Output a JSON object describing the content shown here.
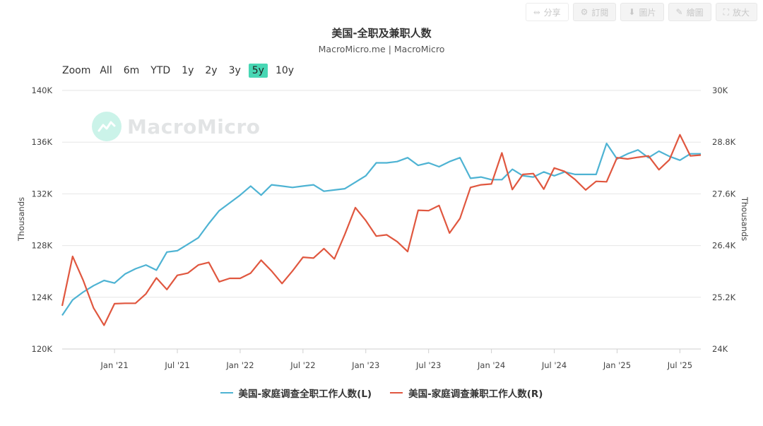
{
  "toolbar": {
    "share": "分享",
    "subscribe": "訂閱",
    "image": "圖片",
    "draw": "繪圖",
    "expand": "放大"
  },
  "zoom": {
    "label": "Zoom",
    "options": [
      "All",
      "6m",
      "YTD",
      "1y",
      "2y",
      "3y",
      "5y",
      "10y"
    ],
    "active": "5y"
  },
  "watermark": "MacroMicro",
  "colors": {
    "left_series": "#4eb3d3",
    "right_series": "#e0573f",
    "accent": "#47d7b4"
  },
  "chart_data": {
    "type": "line",
    "title": "美国-全职及兼职人数",
    "subtitle": "MacroMicro.me | MacroMicro",
    "x_ticks": [
      "Jan '21",
      "Jul '21",
      "Jan '22",
      "Jul '22",
      "Jan '23",
      "Jul '23",
      "Jan '24",
      "Jul '24",
      "Jan '25",
      "Jul '25"
    ],
    "x_range": [
      "2020-08",
      "2025-09"
    ],
    "y_left": {
      "label": "Thousands",
      "ticks": [
        "120K",
        "124K",
        "128K",
        "132K",
        "136K",
        "140K"
      ],
      "range": [
        120000,
        140000
      ]
    },
    "y_right": {
      "label": "Thousands",
      "ticks": [
        "24K",
        "25.2K",
        "26.4K",
        "27.6K",
        "28.8K",
        "30K"
      ],
      "range": [
        24000,
        30000
      ]
    },
    "grid": true,
    "legend_position": "bottom",
    "series": [
      {
        "name": "美国-家庭调查全职工作人数(L)",
        "axis": "left",
        "x": [
          "2020-08",
          "2020-09",
          "2020-10",
          "2020-11",
          "2020-12",
          "2021-01",
          "2021-02",
          "2021-03",
          "2021-04",
          "2021-05",
          "2021-06",
          "2021-07",
          "2021-08",
          "2021-09",
          "2021-10",
          "2021-11",
          "2021-12",
          "2022-01",
          "2022-02",
          "2022-03",
          "2022-04",
          "2022-05",
          "2022-06",
          "2022-07",
          "2022-08",
          "2022-09",
          "2022-10",
          "2022-11",
          "2022-12",
          "2023-01",
          "2023-02",
          "2023-03",
          "2023-04",
          "2023-05",
          "2023-06",
          "2023-07",
          "2023-08",
          "2023-09",
          "2023-10",
          "2023-11",
          "2023-12",
          "2024-01",
          "2024-02",
          "2024-03",
          "2024-04",
          "2024-05",
          "2024-06",
          "2024-07",
          "2024-08",
          "2024-09",
          "2024-10",
          "2024-11",
          "2024-12",
          "2025-01",
          "2025-02",
          "2025-03",
          "2025-04",
          "2025-05",
          "2025-06",
          "2025-07",
          "2025-08",
          "2025-09"
        ],
        "values": [
          122600,
          123800,
          124400,
          124900,
          125300,
          125100,
          125800,
          126200,
          126500,
          126100,
          127500,
          127600,
          128100,
          128600,
          129700,
          130700,
          131300,
          131900,
          132600,
          131900,
          132700,
          132600,
          132500,
          132600,
          132700,
          132200,
          132300,
          132400,
          132900,
          133400,
          134400,
          134400,
          134500,
          134800,
          134200,
          134400,
          134100,
          134500,
          134800,
          133200,
          133300,
          133100,
          133100,
          133900,
          133400,
          133300,
          133700,
          133400,
          133700,
          133500,
          133500,
          133500,
          135900,
          134700,
          135100,
          135400,
          134800,
          135300,
          134900,
          134600,
          135100,
          135100
        ]
      },
      {
        "name": "美国-家庭调查兼职工作人数(R)",
        "axis": "right",
        "x": [
          "2020-08",
          "2020-09",
          "2020-10",
          "2020-11",
          "2020-12",
          "2021-01",
          "2021-02",
          "2021-03",
          "2021-04",
          "2021-05",
          "2021-06",
          "2021-07",
          "2021-08",
          "2021-09",
          "2021-10",
          "2021-11",
          "2021-12",
          "2022-01",
          "2022-02",
          "2022-03",
          "2022-04",
          "2022-05",
          "2022-06",
          "2022-07",
          "2022-08",
          "2022-09",
          "2022-10",
          "2022-11",
          "2022-12",
          "2023-01",
          "2023-02",
          "2023-03",
          "2023-04",
          "2023-05",
          "2023-06",
          "2023-07",
          "2023-08",
          "2023-09",
          "2023-10",
          "2023-11",
          "2023-12",
          "2024-01",
          "2024-02",
          "2024-03",
          "2024-04",
          "2024-05",
          "2024-06",
          "2024-07",
          "2024-08",
          "2024-09",
          "2024-10",
          "2024-11",
          "2024-12",
          "2025-01",
          "2025-02",
          "2025-03",
          "2025-04",
          "2025-05",
          "2025-06",
          "2025-07",
          "2025-08",
          "2025-09"
        ],
        "values": [
          25000,
          26150,
          25600,
          24950,
          24550,
          25050,
          25060,
          25060,
          25280,
          25650,
          25380,
          25710,
          25760,
          25950,
          26010,
          25560,
          25640,
          25640,
          25760,
          26060,
          25810,
          25520,
          25810,
          26130,
          26110,
          26330,
          26090,
          26660,
          27280,
          26980,
          26620,
          26650,
          26490,
          26260,
          27220,
          27210,
          27330,
          26690,
          27030,
          27750,
          27810,
          27830,
          28550,
          27700,
          28050,
          28070,
          27710,
          28200,
          28120,
          27930,
          27690,
          27890,
          27880,
          28440,
          28410,
          28450,
          28480,
          28160,
          28390,
          28970,
          28480,
          28500
        ]
      }
    ]
  }
}
